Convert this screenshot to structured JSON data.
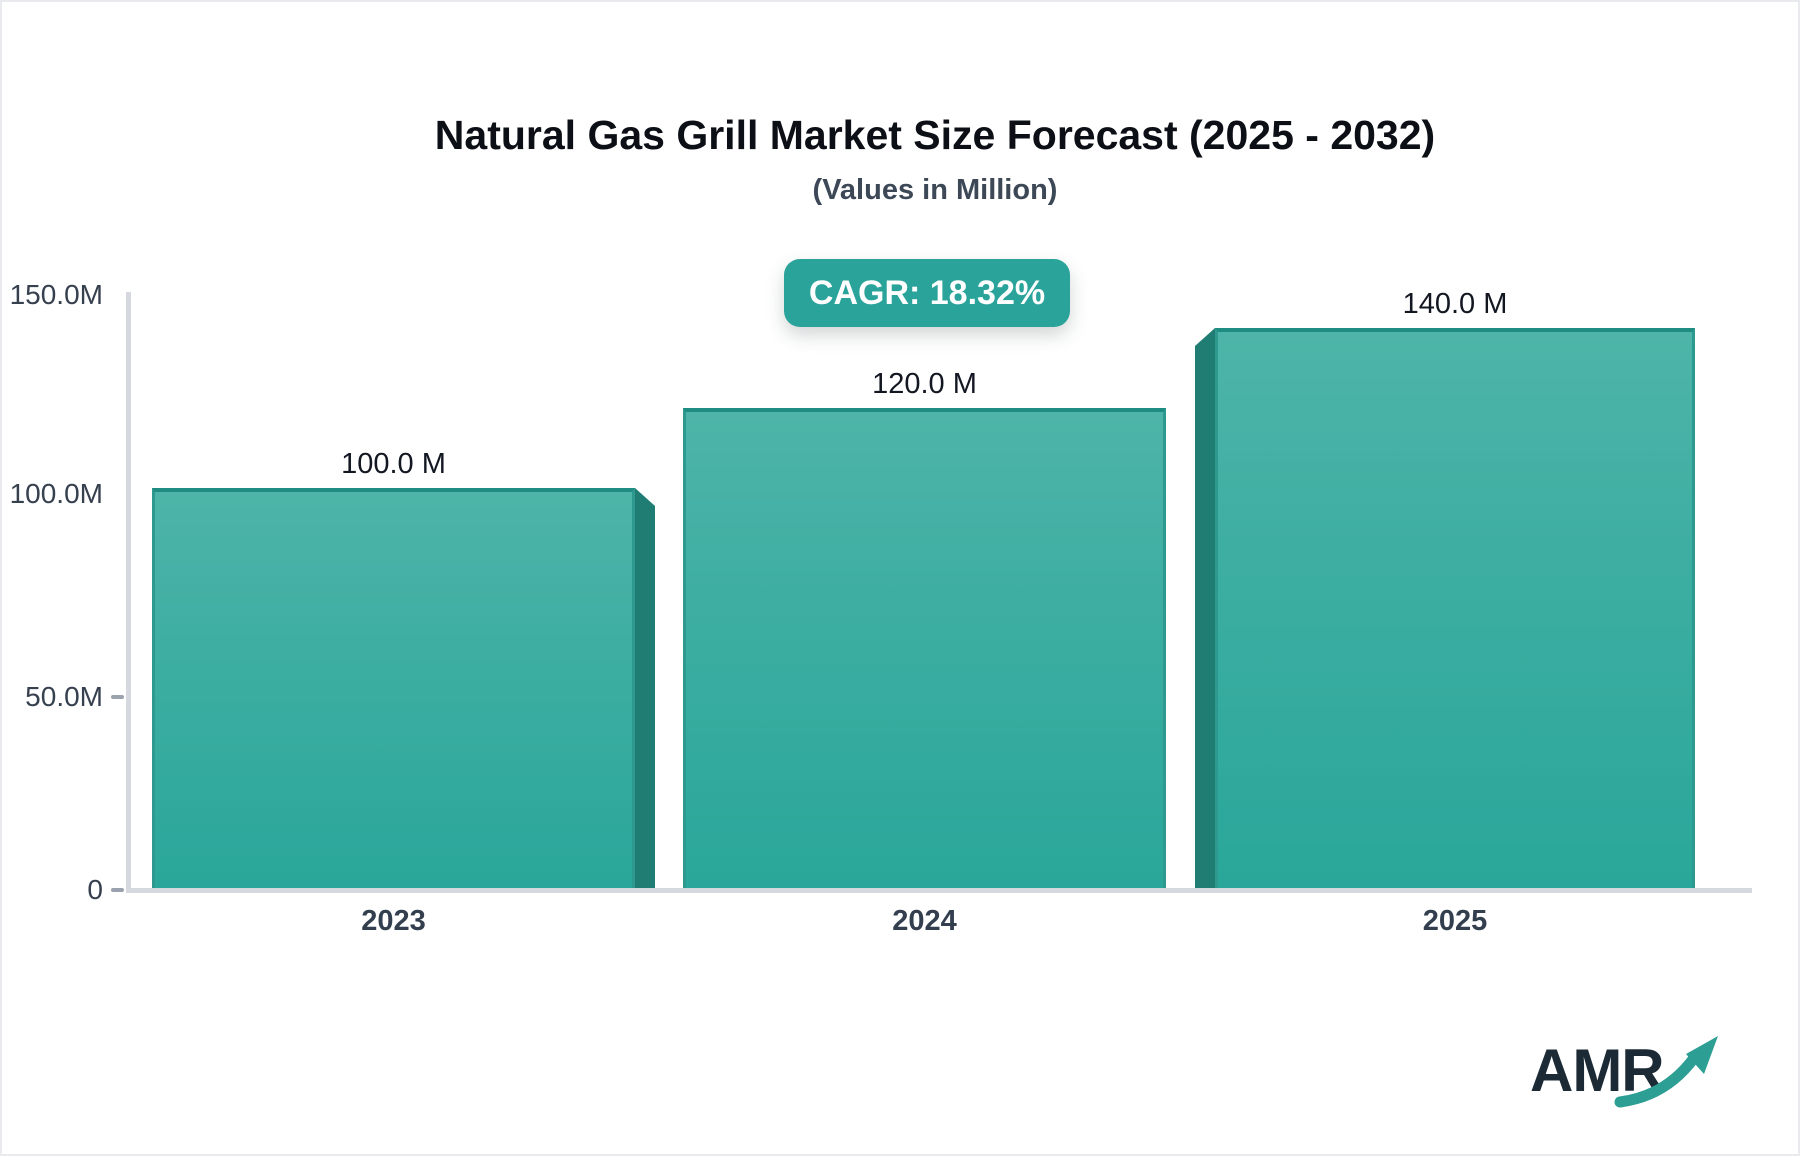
{
  "header": {
    "title": "Natural Gas Grill Market Size Forecast (2025 - 2032)",
    "subtitle": "(Values in Million)"
  },
  "cagr_badge": {
    "label": "CAGR: 18.32%",
    "background": "#2aa49a",
    "text_color": "#ffffff"
  },
  "chart_data": {
    "type": "bar",
    "title": "Natural Gas Grill Market Size Forecast (2025 - 2032)",
    "subtitle": "(Values in Million)",
    "unit": "Million",
    "categories": [
      "2023",
      "2024",
      "2025"
    ],
    "values": [
      100.0,
      120.0,
      140.0
    ],
    "bar_labels": [
      "100.0 M",
      "120.0 M",
      "140.0 M"
    ],
    "cagr": "18.32%",
    "ylim": [
      0,
      150
    ],
    "y_ticks": [
      {
        "label": "150.0M",
        "value": 150,
        "dash": false
      },
      {
        "label": "100.0M",
        "value": 100,
        "dash": false
      },
      {
        "label": "50.0M",
        "value": 50,
        "dash": true
      },
      {
        "label": "0",
        "value": 0,
        "dash": true
      }
    ],
    "grid": false,
    "legend": false,
    "colors": {
      "bar_top": "#4eb4a9",
      "bar_bottom": "#2aa79a",
      "bar_edge": "#1f8c81",
      "bar_side_3d": "#1f7d73",
      "axis": "#d5d8de",
      "tick": "#9aa3ad",
      "axis_label": "#36404f",
      "value_label": "#121722"
    }
  },
  "logo": {
    "text": "AMR",
    "text_color": "#1b2a35",
    "arrow_color": "#2d9e94"
  }
}
